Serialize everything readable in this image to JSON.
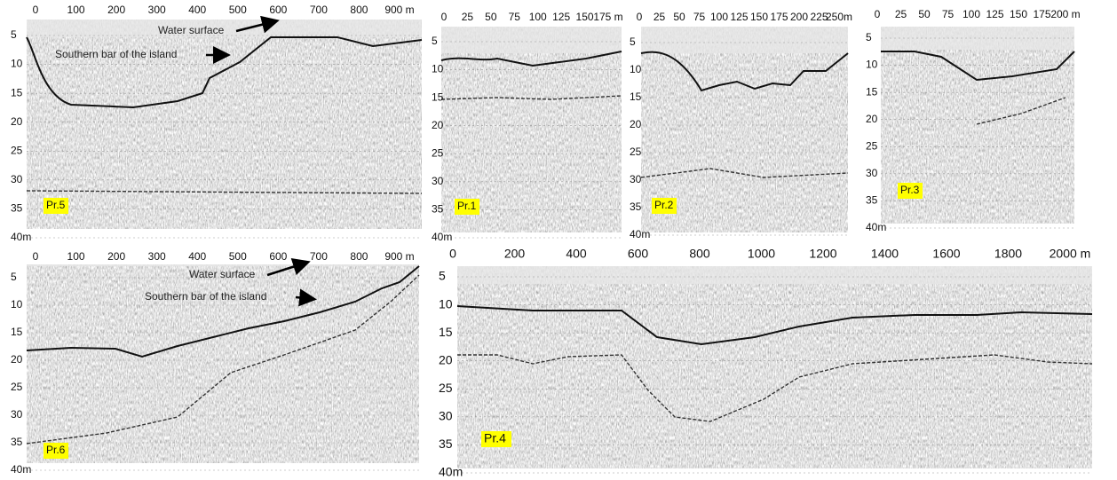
{
  "panels": [
    {
      "label": "Pr.5",
      "x_ticks": [
        "0",
        "100",
        "200",
        "300",
        "400",
        "500",
        "600",
        "700",
        "800",
        "900 m"
      ],
      "y_ticks": [
        "5",
        "10",
        "15",
        "20",
        "25",
        "30",
        "35",
        "40m"
      ],
      "annotations": [
        "Water surface",
        "Southern bar of the island"
      ]
    },
    {
      "label": "Pr.1",
      "x_ticks": [
        "0",
        "25",
        "50",
        "75",
        "100",
        "125",
        "150",
        "175 m"
      ],
      "y_ticks": [
        "5",
        "10",
        "15",
        "20",
        "25",
        "30",
        "35",
        "40m"
      ],
      "annotations": []
    },
    {
      "label": "Pr.2",
      "x_ticks": [
        "0",
        "25",
        "50",
        "75",
        "100",
        "125",
        "150",
        "175",
        "200",
        "225",
        "250m"
      ],
      "y_ticks": [
        "5",
        "10",
        "15",
        "20",
        "25",
        "30",
        "35",
        "40m"
      ],
      "annotations": []
    },
    {
      "label": "Pr.3",
      "x_ticks": [
        "0",
        "25",
        "50",
        "75",
        "100",
        "125",
        "150",
        "175",
        "200 m"
      ],
      "y_ticks": [
        "5",
        "10",
        "15",
        "20",
        "25",
        "30",
        "35",
        "40m"
      ],
      "annotations": []
    },
    {
      "label": "Pr.6",
      "x_ticks": [
        "0",
        "100",
        "200",
        "300",
        "400",
        "500",
        "600",
        "700",
        "800",
        "900 m"
      ],
      "y_ticks": [
        "5",
        "10",
        "15",
        "20",
        "25",
        "30",
        "35",
        "40m"
      ],
      "annotations": [
        "Water surface",
        "Southern bar of the island"
      ]
    },
    {
      "label": "Pr.4",
      "x_ticks": [
        "0",
        "200",
        "400",
        "600",
        "800",
        "1000",
        "1200",
        "1400",
        "1600",
        "1800",
        "2000 m"
      ],
      "y_ticks": [
        "5",
        "10",
        "15",
        "20",
        "25",
        "30",
        "35",
        "40m"
      ],
      "annotations": []
    }
  ]
}
